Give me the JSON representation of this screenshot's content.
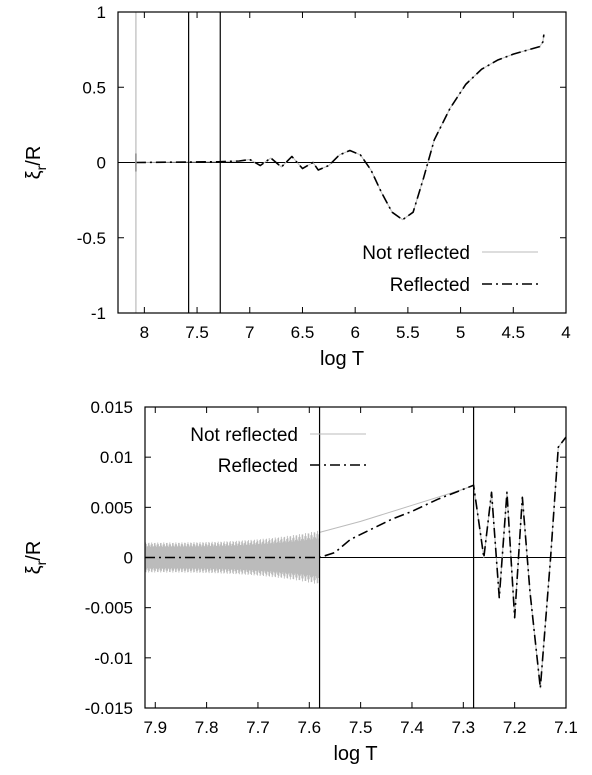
{
  "chart_data": [
    {
      "type": "line",
      "xlabel": "log T",
      "ylabel": "ξr/R",
      "ylabel_main": "ξ",
      "ylabel_sub": "r",
      "ylabel_tail": "/R",
      "xlim": [
        8.25,
        4.0
      ],
      "ylim": [
        -1,
        1
      ],
      "x_reversed": true,
      "xticks": [
        "8",
        "7.5",
        "7",
        "6.5",
        "6",
        "5.5",
        "5",
        "4.5",
        "4"
      ],
      "xtick_values": [
        8,
        7.5,
        7,
        6.5,
        6,
        5.5,
        5,
        4.5,
        4
      ],
      "yticks": [
        "1",
        "0.5",
        "0",
        "-0.5",
        "-1"
      ],
      "ytick_values": [
        1,
        0.5,
        0,
        -0.5,
        -1
      ],
      "vertical_lines": [
        8.08,
        7.58,
        7.28
      ],
      "legend_position": "bottom-right",
      "series": [
        {
          "name": "Not reflected",
          "style": "solid",
          "color": "#bbbbbb",
          "points": [
            [
              8.08,
              0
            ],
            [
              7.3,
              0.005
            ],
            [
              7.1,
              0.01
            ],
            [
              7.0,
              0.02
            ],
            [
              6.9,
              -0.02
            ],
            [
              6.8,
              0.03
            ],
            [
              6.7,
              -0.03
            ],
            [
              6.6,
              0.04
            ],
            [
              6.5,
              -0.04
            ],
            [
              6.4,
              0.0
            ],
            [
              6.35,
              -0.05
            ],
            [
              6.25,
              -0.02
            ],
            [
              6.15,
              0.05
            ],
            [
              6.05,
              0.08
            ],
            [
              5.95,
              0.05
            ],
            [
              5.85,
              -0.05
            ],
            [
              5.75,
              -0.2
            ],
            [
              5.65,
              -0.33
            ],
            [
              5.55,
              -0.38
            ],
            [
              5.45,
              -0.33
            ],
            [
              5.35,
              -0.1
            ],
            [
              5.25,
              0.15
            ],
            [
              5.1,
              0.36
            ],
            [
              4.95,
              0.52
            ],
            [
              4.8,
              0.62
            ],
            [
              4.65,
              0.68
            ],
            [
              4.5,
              0.72
            ],
            [
              4.35,
              0.75
            ],
            [
              4.25,
              0.77
            ],
            [
              4.22,
              0.8
            ],
            [
              4.21,
              0.85
            ]
          ]
        },
        {
          "name": "Reflected",
          "style": "dash-dot",
          "color": "#000000",
          "points": [
            [
              8.08,
              0
            ],
            [
              7.3,
              0.005
            ],
            [
              7.1,
              0.01
            ],
            [
              7.0,
              0.02
            ],
            [
              6.9,
              -0.02
            ],
            [
              6.8,
              0.03
            ],
            [
              6.7,
              -0.03
            ],
            [
              6.6,
              0.04
            ],
            [
              6.5,
              -0.04
            ],
            [
              6.4,
              0.0
            ],
            [
              6.35,
              -0.05
            ],
            [
              6.25,
              -0.02
            ],
            [
              6.15,
              0.05
            ],
            [
              6.05,
              0.08
            ],
            [
              5.95,
              0.05
            ],
            [
              5.85,
              -0.05
            ],
            [
              5.75,
              -0.2
            ],
            [
              5.65,
              -0.33
            ],
            [
              5.55,
              -0.38
            ],
            [
              5.45,
              -0.33
            ],
            [
              5.35,
              -0.1
            ],
            [
              5.25,
              0.15
            ],
            [
              5.1,
              0.36
            ],
            [
              4.95,
              0.52
            ],
            [
              4.8,
              0.62
            ],
            [
              4.65,
              0.68
            ],
            [
              4.5,
              0.72
            ],
            [
              4.35,
              0.75
            ],
            [
              4.25,
              0.77
            ],
            [
              4.22,
              0.8
            ],
            [
              4.21,
              0.85
            ]
          ]
        }
      ]
    },
    {
      "type": "line",
      "xlabel": "log T",
      "ylabel": "ξr/R",
      "ylabel_main": "ξ",
      "ylabel_sub": "r",
      "ylabel_tail": "/R",
      "xlim": [
        7.92,
        7.1
      ],
      "ylim": [
        -0.015,
        0.015
      ],
      "x_reversed": true,
      "xticks": [
        "7.9",
        "7.8",
        "7.7",
        "7.6",
        "7.5",
        "7.4",
        "7.3",
        "7.2",
        "7.1"
      ],
      "xtick_values": [
        7.9,
        7.8,
        7.7,
        7.6,
        7.5,
        7.4,
        7.3,
        7.2,
        7.1
      ],
      "yticks": [
        "0.015",
        "0.01",
        "0.005",
        "0",
        "-0.005",
        "-0.01",
        "-0.015"
      ],
      "ytick_values": [
        0.015,
        0.01,
        0.005,
        0,
        -0.005,
        -0.01,
        -0.015
      ],
      "vertical_lines": [
        7.58,
        7.28
      ],
      "legend_position": "top-left",
      "noise_band": {
        "x_start": 7.92,
        "x_end": 7.58,
        "amplitude_start": 0.0015,
        "amplitude_end": 0.0027,
        "color": "#bbbbbb"
      },
      "series": [
        {
          "name": "Not reflected",
          "style": "solid",
          "color": "#bbbbbb",
          "points": [
            [
              7.58,
              0.0025
            ],
            [
              7.5,
              0.0036
            ],
            [
              7.4,
              0.0052
            ],
            [
              7.3,
              0.0068
            ],
            [
              7.28,
              0.0072
            ],
            [
              7.26,
              0.0
            ],
            [
              7.245,
              0.0065
            ],
            [
              7.23,
              -0.004
            ],
            [
              7.215,
              0.0065
            ],
            [
              7.2,
              -0.006
            ],
            [
              7.185,
              0.006
            ],
            [
              7.17,
              -0.0035
            ],
            [
              7.15,
              -0.013
            ],
            [
              7.13,
              0.0
            ],
            [
              7.115,
              0.011
            ],
            [
              7.1,
              0.012
            ]
          ]
        },
        {
          "name": "Reflected",
          "style": "dash-dot",
          "color": "#000000",
          "points": [
            [
              7.92,
              0.0
            ],
            [
              7.58,
              0.0
            ],
            [
              7.55,
              0.0005
            ],
            [
              7.52,
              0.0018
            ],
            [
              7.48,
              0.0028
            ],
            [
              7.44,
              0.0038
            ],
            [
              7.4,
              0.0046
            ],
            [
              7.35,
              0.0058
            ],
            [
              7.3,
              0.0068
            ],
            [
              7.28,
              0.0072
            ],
            [
              7.26,
              0.0
            ],
            [
              7.245,
              0.0065
            ],
            [
              7.23,
              -0.004
            ],
            [
              7.215,
              0.0065
            ],
            [
              7.2,
              -0.006
            ],
            [
              7.185,
              0.006
            ],
            [
              7.17,
              -0.0035
            ],
            [
              7.15,
              -0.013
            ],
            [
              7.13,
              0.0
            ],
            [
              7.115,
              0.011
            ],
            [
              7.1,
              0.012
            ]
          ]
        }
      ]
    }
  ]
}
